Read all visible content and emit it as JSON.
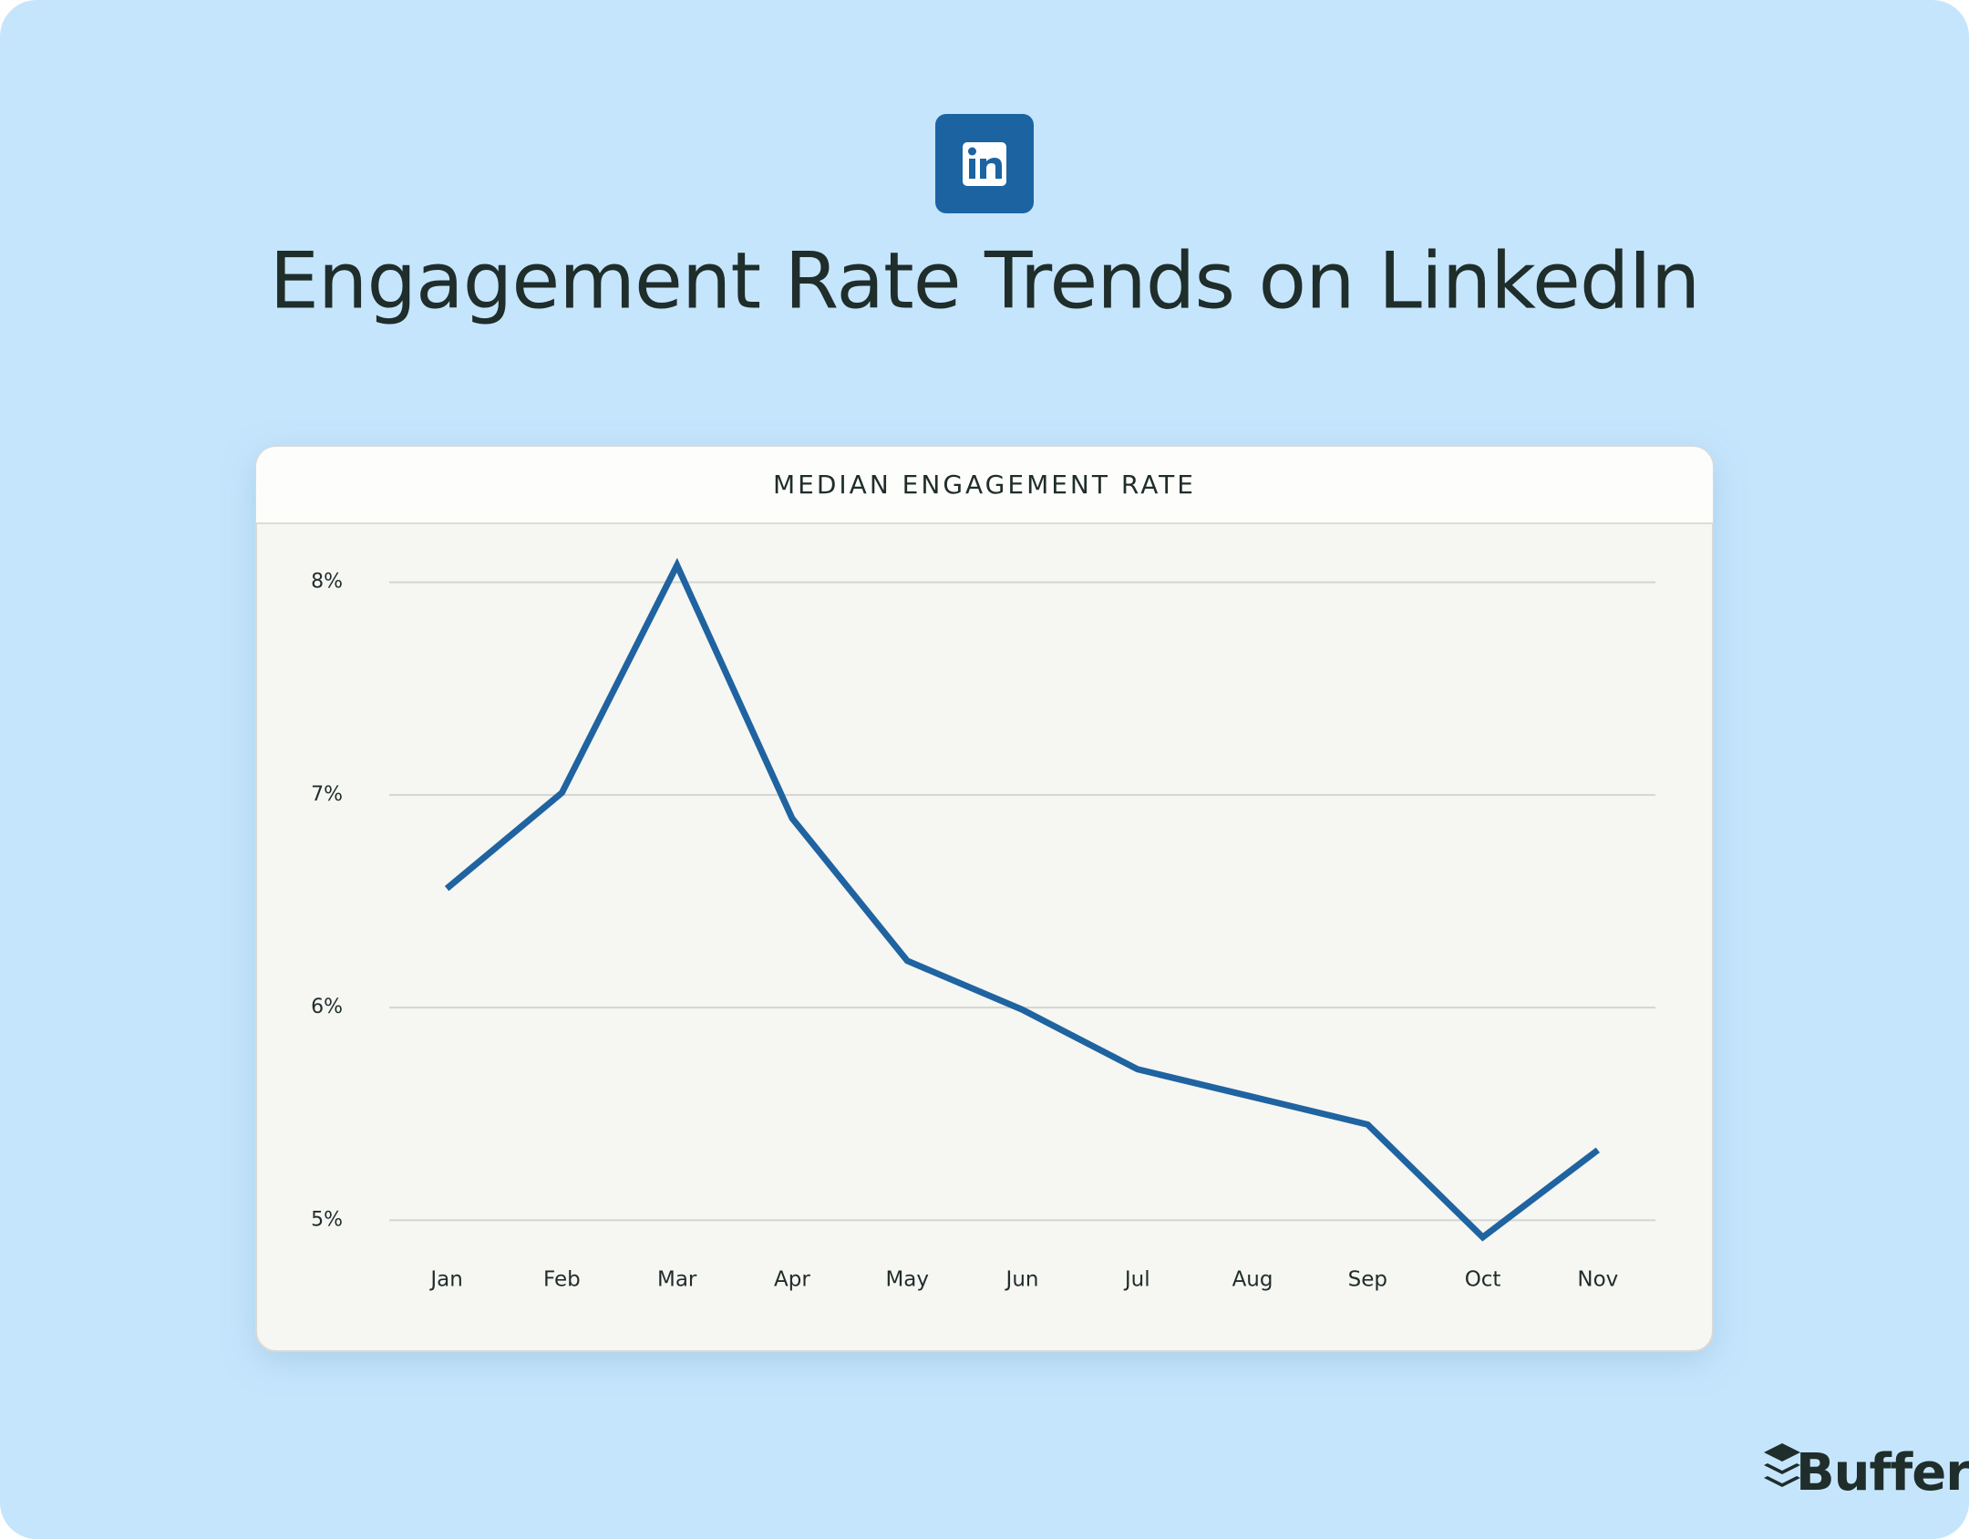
{
  "chart_data": {
    "type": "line",
    "title": "Engagement Rate Trends on LinkedIn",
    "subtitle": "MEDIAN ENGAGEMENT RATE",
    "categories": [
      "Jan",
      "Feb",
      "Mar",
      "Apr",
      "May",
      "Jun",
      "Jul",
      "Aug",
      "Sep",
      "Oct",
      "Nov"
    ],
    "values": [
      6.56,
      7.01,
      8.08,
      6.89,
      6.22,
      5.99,
      5.71,
      5.58,
      5.45,
      4.92,
      5.33
    ],
    "color": "#1f63a0",
    "ylim": [
      4.83,
      8.14
    ],
    "yticks": [
      {
        "value": 5,
        "label": "5%"
      },
      {
        "value": 6,
        "label": "6%"
      },
      {
        "value": 7,
        "label": "7%"
      },
      {
        "value": 8,
        "label": "8%"
      }
    ],
    "grid": true
  },
  "brand": "Buffer"
}
